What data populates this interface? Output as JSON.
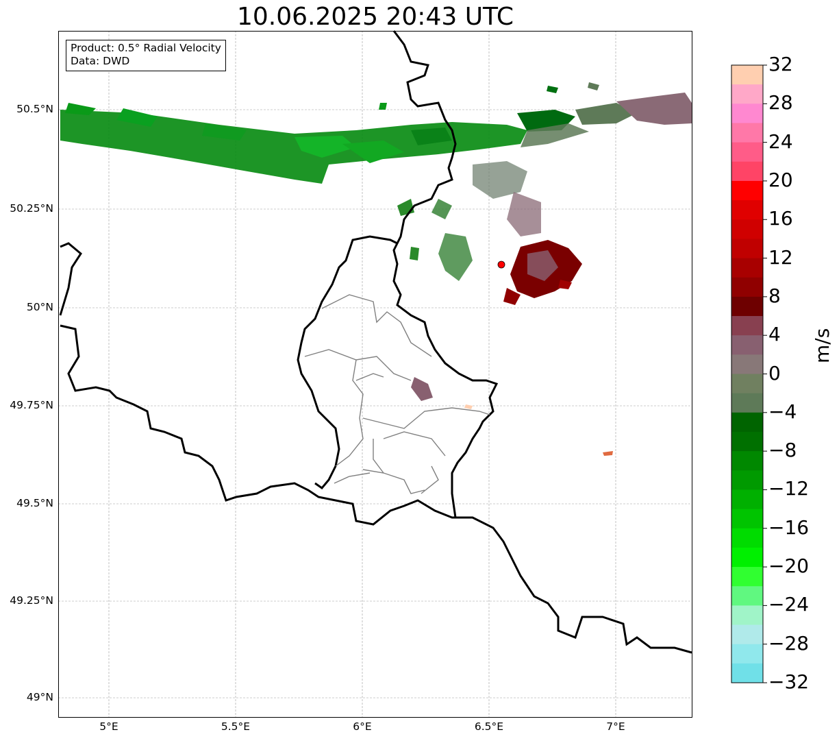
{
  "title": "10.06.2025 20:43 UTC",
  "info_box": {
    "product": "Product: 0.5° Radial Velocity",
    "data": "Data: DWD"
  },
  "map": {
    "lon_range": [
      4.8,
      7.3
    ],
    "lat_range": [
      48.95,
      50.7
    ],
    "lat_ticks": [
      "50.5°N",
      "50.25°N",
      "50°N",
      "49.75°N",
      "49.5°N",
      "49.25°N",
      "49°N"
    ],
    "lon_ticks": [
      "5°E",
      "5.5°E",
      "6°E",
      "6.5°E",
      "7°E"
    ],
    "gridlines": true,
    "radar_site": {
      "lon": 6.55,
      "lat": 50.11,
      "color": "#ff0000"
    }
  },
  "colorbar": {
    "label": "m/s",
    "range": [
      -32,
      32
    ],
    "ticks": [
      "32",
      "28",
      "24",
      "20",
      "16",
      "12",
      "8",
      "4",
      "0",
      "−4",
      "−8",
      "−12",
      "−16",
      "−20",
      "−24",
      "−28",
      "−32"
    ],
    "colors_top_to_bottom": [
      "#ffcfb0",
      "#ffa8c8",
      "#ff88d0",
      "#ff78a8",
      "#ff5c88",
      "#ff4466",
      "#ff0000",
      "#e00000",
      "#d00000",
      "#c00000",
      "#a80000",
      "#900000",
      "#6e0000",
      "#884050",
      "#886070",
      "#887878",
      "#708060",
      "#5e7a58",
      "#006400",
      "#007000",
      "#008800",
      "#009a00",
      "#00b000",
      "#00c400",
      "#00dc00",
      "#00f000",
      "#30ff30",
      "#60f880",
      "#a0f4c8",
      "#b0eaea",
      "#90e8ec",
      "#70e0e8"
    ]
  }
}
